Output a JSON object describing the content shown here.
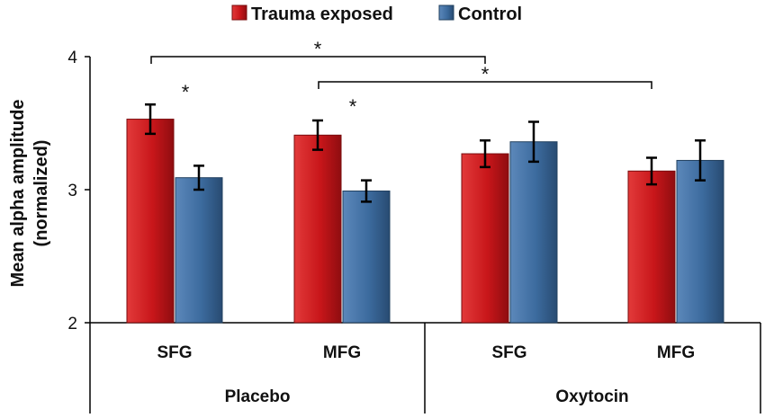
{
  "chart_data": {
    "type": "bar",
    "ylabel_line1": "Mean alpha amplitude",
    "ylabel_line2": "(normalized)",
    "ylim": [
      2,
      4
    ],
    "yticks": [
      "2",
      "3",
      "4"
    ],
    "legend": [
      {
        "name": "Trauma exposed",
        "color": "#c8161a"
      },
      {
        "name": "Control",
        "color": "#3c6b9e"
      }
    ],
    "groups": [
      "Placebo",
      "Oxytocin"
    ],
    "categories": [
      "SFG",
      "MFG",
      "SFG",
      "MFG"
    ],
    "category_group": [
      0,
      0,
      1,
      1
    ],
    "series": [
      {
        "name": "Trauma exposed",
        "values": [
          3.53,
          3.41,
          3.27,
          3.14
        ],
        "errors": [
          0.11,
          0.11,
          0.1,
          0.1
        ]
      },
      {
        "name": "Control",
        "values": [
          3.09,
          2.99,
          3.36,
          3.22
        ],
        "errors": [
          0.09,
          0.08,
          0.15,
          0.15
        ]
      }
    ],
    "annotations": {
      "pair_stars": [
        "*",
        "*"
      ],
      "bracket_stars": [
        "*",
        "*"
      ]
    }
  }
}
